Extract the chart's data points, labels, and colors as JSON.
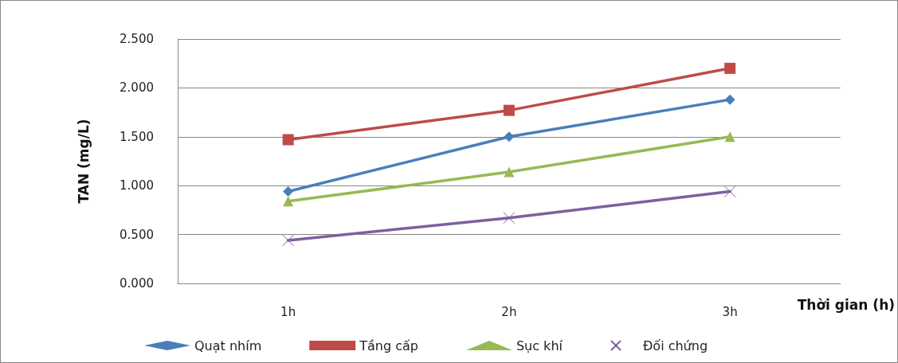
{
  "chart_data": {
    "type": "line",
    "xlabel": "Thời gian (h)",
    "ylabel": "TAN (mg/L)",
    "categories": [
      "1h",
      "2h",
      "3h"
    ],
    "series": [
      {
        "name": "Quạt nhím",
        "color": "#4a7ebb",
        "marker": "diamond",
        "values": [
          0.94,
          1.5,
          1.88
        ]
      },
      {
        "name": "Tầng cấp",
        "color": "#be4b48",
        "marker": "square",
        "values": [
          1.47,
          1.77,
          2.2
        ]
      },
      {
        "name": "Sục khí",
        "color": "#98b954",
        "marker": "triangle",
        "values": [
          0.84,
          1.14,
          1.5
        ]
      },
      {
        "name": "Đối chứng",
        "color": "#7d60a0",
        "marker": "cross",
        "values": [
          0.44,
          0.67,
          0.94
        ]
      }
    ],
    "ylim": [
      0,
      2.5
    ],
    "yticks": [
      {
        "value": 0,
        "label": "0.000"
      },
      {
        "value": 0.5,
        "label": "0.500"
      },
      {
        "value": 1,
        "label": "1.000"
      },
      {
        "value": 1.5,
        "label": "1.500"
      },
      {
        "value": 2,
        "label": "2.000"
      },
      {
        "value": 2.5,
        "label": "2.500"
      }
    ],
    "grid": "y",
    "legend": "bottom",
    "line_style": "solid"
  }
}
